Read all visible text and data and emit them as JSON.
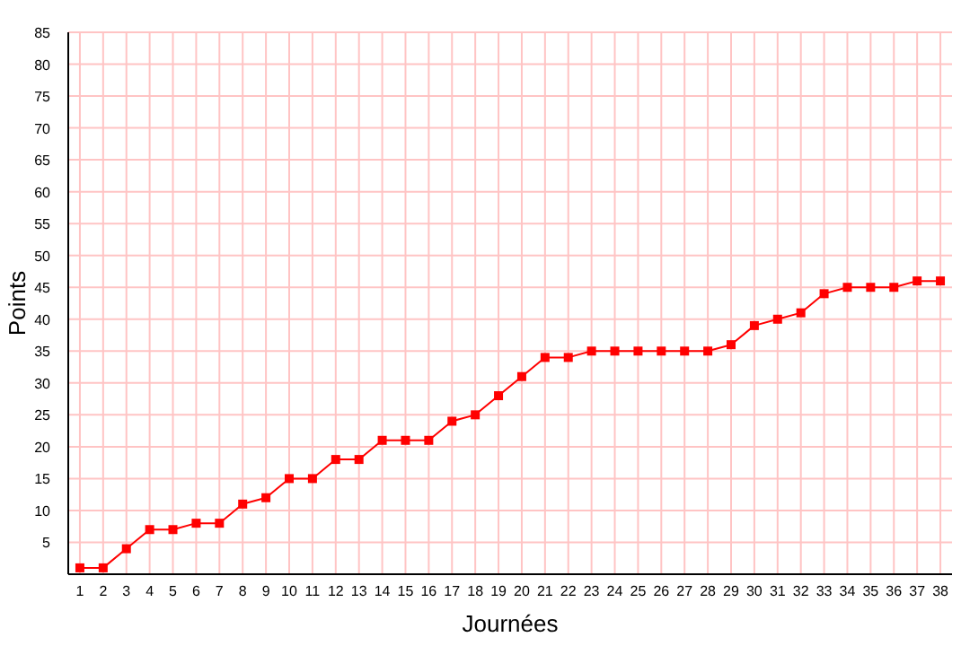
{
  "chart_data": {
    "type": "line",
    "xlabel": "Journées",
    "ylabel": "Points",
    "x": [
      1,
      2,
      3,
      4,
      5,
      6,
      7,
      8,
      9,
      10,
      11,
      12,
      13,
      14,
      15,
      16,
      17,
      18,
      19,
      20,
      21,
      22,
      23,
      24,
      25,
      26,
      27,
      28,
      29,
      30,
      31,
      32,
      33,
      34,
      35,
      36,
      37,
      38
    ],
    "series": [
      {
        "color": "#ff0000",
        "values": [
          1,
          1,
          4,
          7,
          7,
          8,
          8,
          11,
          12,
          15,
          15,
          18,
          18,
          21,
          21,
          21,
          24,
          25,
          28,
          31,
          34,
          34,
          35,
          35,
          35,
          35,
          35,
          35,
          36,
          39,
          40,
          41,
          44,
          45,
          45,
          45,
          46,
          46
        ]
      }
    ],
    "xlim": [
      0.5,
      38.5
    ],
    "xticks": [
      1,
      2,
      3,
      4,
      5,
      6,
      7,
      8,
      9,
      10,
      11,
      12,
      13,
      14,
      15,
      16,
      17,
      18,
      19,
      20,
      21,
      22,
      23,
      24,
      25,
      26,
      27,
      28,
      29,
      30,
      31,
      32,
      33,
      34,
      35,
      36,
      37,
      38
    ],
    "ylim": [
      0,
      85
    ],
    "yticks": [
      5,
      10,
      15,
      20,
      25,
      30,
      35,
      40,
      45,
      50,
      55,
      60,
      65,
      70,
      75,
      80,
      85
    ],
    "grid": true,
    "marker": "square",
    "line_style": "solid"
  }
}
